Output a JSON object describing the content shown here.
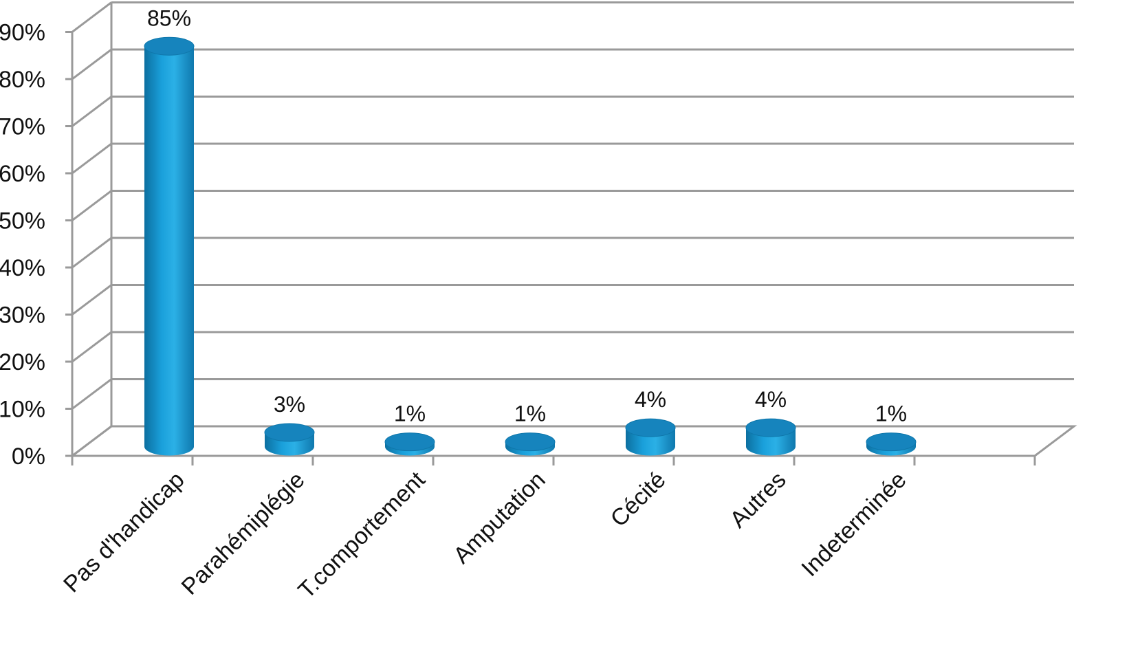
{
  "chart_data": {
    "type": "bar",
    "style": "3d-cylinder",
    "categories": [
      "Pas d'handicap",
      "Parahémiplégie",
      "T.comportement",
      "Amputation",
      "Cécité",
      "Autres",
      "Indeterminée"
    ],
    "values": [
      85,
      3,
      1,
      1,
      4,
      4,
      1
    ],
    "data_labels": [
      "85%",
      "3%",
      "1%",
      "1%",
      "4%",
      "4%",
      "1%"
    ],
    "y_ticks": [
      "0%",
      "10%",
      "20%",
      "30%",
      "40%",
      "50%",
      "60%",
      "70%",
      "80%",
      "90%"
    ],
    "ylim": [
      0,
      90
    ],
    "grid": true,
    "legend": "none",
    "colors": {
      "bar": "#1aa0db",
      "bar_dark": "#0c6fa0",
      "bar_top": "#1684bd",
      "grid": "#9a9a9a"
    }
  }
}
